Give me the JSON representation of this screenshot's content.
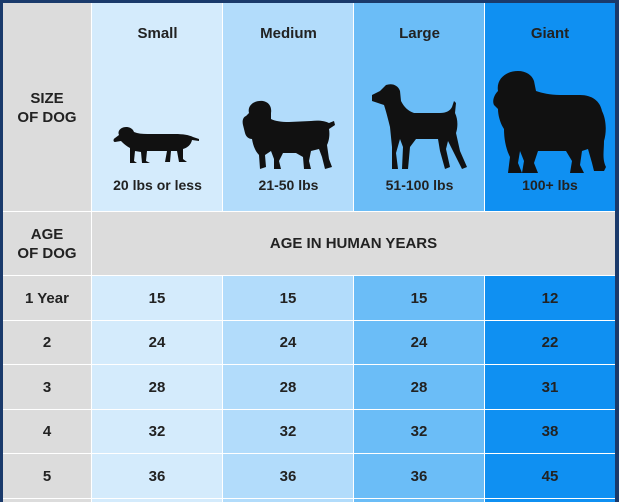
{
  "header": {
    "size_label_1": "SIZE",
    "size_label_2": "OF DOG",
    "age_label_1": "AGE",
    "age_label_2": "OF DOG",
    "human_years_label": "AGE IN HUMAN YEARS"
  },
  "sizes": [
    {
      "name": "Small",
      "weight": "20 lbs or less",
      "icon": "dachshund-icon"
    },
    {
      "name": "Medium",
      "weight": "21-50 lbs",
      "icon": "spaniel-icon"
    },
    {
      "name": "Large",
      "weight": "51-100 lbs",
      "icon": "pointer-icon"
    },
    {
      "name": "Giant",
      "weight": "100+ lbs",
      "icon": "newfoundland-icon"
    }
  ],
  "rows": [
    {
      "age": "1 Year",
      "values": [
        "15",
        "15",
        "15",
        "12"
      ]
    },
    {
      "age": "2",
      "values": [
        "24",
        "24",
        "24",
        "22"
      ]
    },
    {
      "age": "3",
      "values": [
        "28",
        "28",
        "28",
        "31"
      ]
    },
    {
      "age": "4",
      "values": [
        "32",
        "32",
        "32",
        "38"
      ]
    },
    {
      "age": "5",
      "values": [
        "36",
        "36",
        "36",
        "45"
      ]
    }
  ],
  "colors": {
    "label_column": "#dcdcdc",
    "small": "#d4ebfc",
    "medium": "#b2dcfb",
    "large": "#6bbdf7",
    "giant": "#0f90f2",
    "frame": "#1a3a6b"
  }
}
